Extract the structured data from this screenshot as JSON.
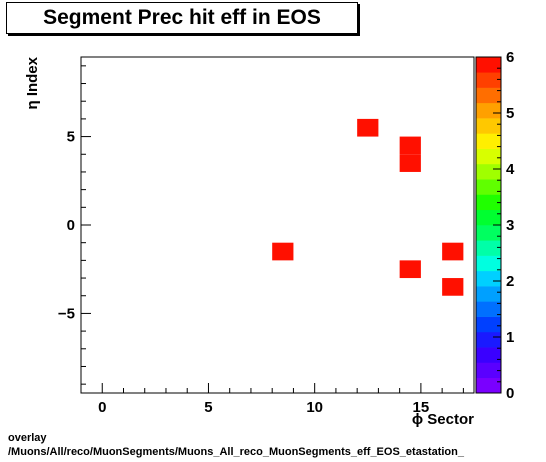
{
  "chart_data": {
    "type": "heatmap",
    "title": "Segment Prec hit eff in EOS",
    "xlabel": "ϕ Sector",
    "ylabel": "η Index",
    "xlim": [
      -1,
      17.5
    ],
    "ylim": [
      -9.5,
      9.5
    ],
    "x_ticks": [
      0,
      5,
      10,
      15
    ],
    "y_ticks": [
      -5,
      0,
      5
    ],
    "zlim": [
      0,
      6
    ],
    "z_ticks": [
      0,
      1,
      2,
      3,
      4,
      5,
      6
    ],
    "cells": [
      {
        "x": 12,
        "y": 5,
        "value": 6
      },
      {
        "x": 14,
        "y": 4,
        "value": 6
      },
      {
        "x": 14,
        "y": 3,
        "value": 6
      },
      {
        "x": 8,
        "y": -2,
        "value": 6
      },
      {
        "x": 16,
        "y": -2,
        "value": 6
      },
      {
        "x": 14,
        "y": -3,
        "value": 6
      },
      {
        "x": 16,
        "y": -4,
        "value": 6
      }
    ],
    "palette": [
      "#7a00ff",
      "#5a00ff",
      "#3a00ff",
      "#1a1aff",
      "#0040ff",
      "#0070ff",
      "#00a0ff",
      "#00d0ff",
      "#00ffe0",
      "#00ffa8",
      "#00ff60",
      "#00ff30",
      "#20ff00",
      "#60ff00",
      "#a0ff00",
      "#d8ff00",
      "#ffef00",
      "#ffc800",
      "#ffa000",
      "#ff6e00",
      "#ff4000",
      "#ff1000"
    ]
  },
  "footer": {
    "line1": "overlay",
    "line2": "/Muons/All/reco/MuonSegments/Muons_All_reco_MuonSegments_eff_EOS_etastation_"
  }
}
